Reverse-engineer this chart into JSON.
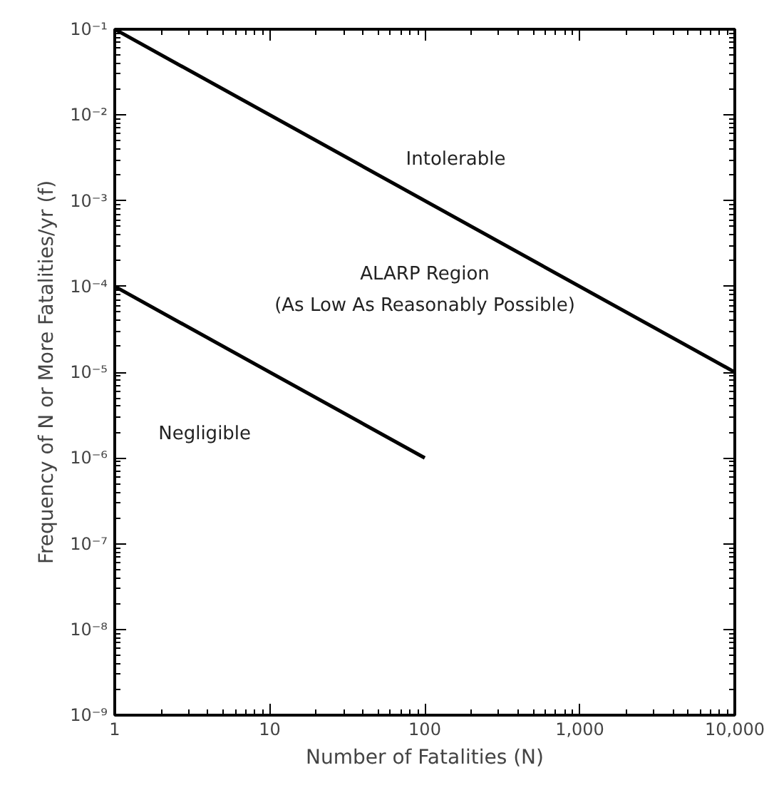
{
  "chart_data": {
    "type": "line",
    "xlabel": "Number of Fatalities (N)",
    "ylabel": "Frequency of N or More Fatalities/yr (f)",
    "log": "xy",
    "grid": false,
    "marker": "none",
    "line_style": "solid",
    "xlim": [
      1,
      10000
    ],
    "ylim": [
      1e-09,
      0.1
    ],
    "xticks": [
      1,
      10,
      100,
      {
        "value": 1000,
        "label": "1,000"
      },
      {
        "value": 10000,
        "label": "10,000"
      }
    ],
    "yticks": [
      {
        "value": 1e-09,
        "label": "10⁻⁹"
      },
      {
        "value": 1e-08,
        "label": "10⁻⁸"
      },
      {
        "value": 1e-07,
        "label": "10⁻⁷"
      },
      {
        "value": 1e-06,
        "label": "10⁻⁶"
      },
      {
        "value": 1e-05,
        "label": "10⁻⁵"
      },
      {
        "value": 0.0001,
        "label": "10⁻⁴"
      },
      {
        "value": 0.001,
        "label": "10⁻³"
      },
      {
        "value": 0.01,
        "label": "10⁻²"
      },
      {
        "value": 0.1,
        "label": "10⁻¹"
      }
    ],
    "series": [
      {
        "color": "#000000",
        "x": [
          1,
          10000
        ],
        "values": [
          0.1,
          1e-05
        ]
      },
      {
        "color": "#000000",
        "x": [
          1,
          100
        ],
        "values": [
          0.0001,
          1e-06
        ]
      }
    ],
    "annotations": [
      "Intolerable",
      "ALARP Region\n(As Low As Reasonably Possible)",
      "Negligible"
    ]
  }
}
